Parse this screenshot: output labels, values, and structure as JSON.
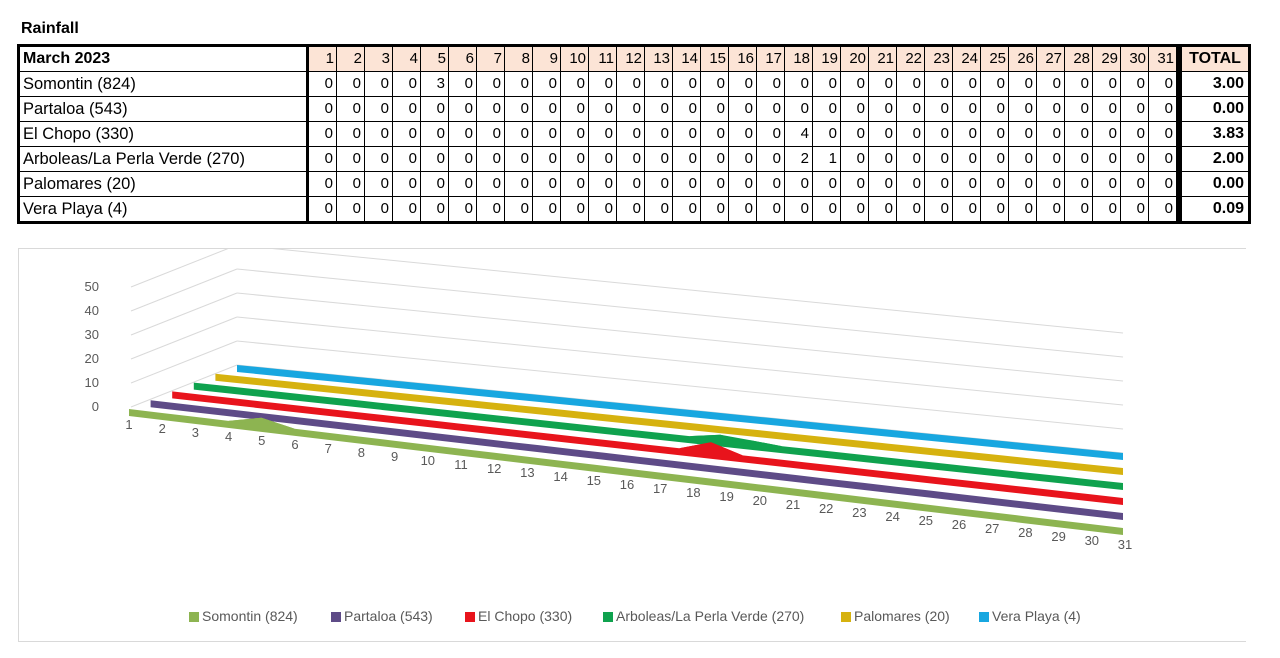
{
  "page_title": "Rainfall",
  "table": {
    "month_label": "March 2023",
    "days": [
      "1",
      "2",
      "3",
      "4",
      "5",
      "6",
      "7",
      "8",
      "9",
      "10",
      "11",
      "12",
      "13",
      "14",
      "15",
      "16",
      "17",
      "18",
      "19",
      "20",
      "21",
      "22",
      "23",
      "24",
      "25",
      "26",
      "27",
      "28",
      "29",
      "30",
      "31"
    ],
    "total_label": "TOTAL",
    "rows": [
      {
        "name": "Somontin (824)",
        "values": [
          "0",
          "0",
          "0",
          "0",
          "3",
          "0",
          "0",
          "0",
          "0",
          "0",
          "0",
          "0",
          "0",
          "0",
          "0",
          "0",
          "0",
          "0",
          "0",
          "0",
          "0",
          "0",
          "0",
          "0",
          "0",
          "0",
          "0",
          "0",
          "0",
          "0",
          "0"
        ],
        "total": "3.00"
      },
      {
        "name": "Partaloa (543)",
        "values": [
          "0",
          "0",
          "0",
          "0",
          "0",
          "0",
          "0",
          "0",
          "0",
          "0",
          "0",
          "0",
          "0",
          "0",
          "0",
          "0",
          "0",
          "0",
          "0",
          "0",
          "0",
          "0",
          "0",
          "0",
          "0",
          "0",
          "0",
          "0",
          "0",
          "0",
          "0"
        ],
        "total": "0.00"
      },
      {
        "name": "El Chopo (330)",
        "values": [
          "0",
          "0",
          "0",
          "0",
          "0",
          "0",
          "0",
          "0",
          "0",
          "0",
          "0",
          "0",
          "0",
          "0",
          "0",
          "0",
          "0",
          "4",
          "0",
          "0",
          "0",
          "0",
          "0",
          "0",
          "0",
          "0",
          "0",
          "0",
          "0",
          "0",
          "0"
        ],
        "total": "3.83"
      },
      {
        "name": "Arboleas/La Perla Verde (270)",
        "values": [
          "0",
          "0",
          "0",
          "0",
          "0",
          "0",
          "0",
          "0",
          "0",
          "0",
          "0",
          "0",
          "0",
          "0",
          "0",
          "0",
          "0",
          "2",
          "1",
          "0",
          "0",
          "0",
          "0",
          "0",
          "0",
          "0",
          "0",
          "0",
          "0",
          "0",
          "0"
        ],
        "total": "2.00"
      },
      {
        "name": "Palomares (20)",
        "values": [
          "0",
          "0",
          "0",
          "0",
          "0",
          "0",
          "0",
          "0",
          "0",
          "0",
          "0",
          "0",
          "0",
          "0",
          "0",
          "0",
          "0",
          "0",
          "0",
          "0",
          "0",
          "0",
          "0",
          "0",
          "0",
          "0",
          "0",
          "0",
          "0",
          "0",
          "0"
        ],
        "total": "0.00"
      },
      {
        "name": "Vera Playa (4)",
        "values": [
          "0",
          "0",
          "0",
          "0",
          "0",
          "0",
          "0",
          "0",
          "0",
          "0",
          "0",
          "0",
          "0",
          "0",
          "0",
          "0",
          "0",
          "0",
          "0",
          "0",
          "0",
          "0",
          "0",
          "0",
          "0",
          "0",
          "0",
          "0",
          "0",
          "0",
          "0"
        ],
        "total": "0.09"
      }
    ]
  },
  "chart_data": {
    "type": "area",
    "style": "3d",
    "x": [
      1,
      2,
      3,
      4,
      5,
      6,
      7,
      8,
      9,
      10,
      11,
      12,
      13,
      14,
      15,
      16,
      17,
      18,
      19,
      20,
      21,
      22,
      23,
      24,
      25,
      26,
      27,
      28,
      29,
      30,
      31
    ],
    "y_ticks": [
      "0",
      "10",
      "20",
      "30",
      "40",
      "50"
    ],
    "ylim": [
      0,
      50
    ],
    "grid": true,
    "legend_position": "bottom",
    "series": [
      {
        "name": "Somontin (824)",
        "color": "#8db451",
        "values": [
          0,
          0,
          0,
          0,
          3,
          0,
          0,
          0,
          0,
          0,
          0,
          0,
          0,
          0,
          0,
          0,
          0,
          0,
          0,
          0,
          0,
          0,
          0,
          0,
          0,
          0,
          0,
          0,
          0,
          0,
          0
        ]
      },
      {
        "name": "Partaloa (543)",
        "color": "#5e4b87",
        "values": [
          0,
          0,
          0,
          0,
          0,
          0,
          0,
          0,
          0,
          0,
          0,
          0,
          0,
          0,
          0,
          0,
          0,
          0,
          0,
          0,
          0,
          0,
          0,
          0,
          0,
          0,
          0,
          0,
          0,
          0,
          0
        ]
      },
      {
        "name": "El Chopo (330)",
        "color": "#e8141c",
        "values": [
          0,
          0,
          0,
          0,
          0,
          0,
          0,
          0,
          0,
          0,
          0,
          0,
          0,
          0,
          0,
          0,
          0,
          4,
          0,
          0,
          0,
          0,
          0,
          0,
          0,
          0,
          0,
          0,
          0,
          0,
          0
        ]
      },
      {
        "name": "Arboleas/La Perla Verde (270)",
        "color": "#0fa24e",
        "values": [
          0,
          0,
          0,
          0,
          0,
          0,
          0,
          0,
          0,
          0,
          0,
          0,
          0,
          0,
          0,
          0,
          0,
          2,
          1,
          0,
          0,
          0,
          0,
          0,
          0,
          0,
          0,
          0,
          0,
          0,
          0
        ]
      },
      {
        "name": "Palomares (20)",
        "color": "#d6b20f",
        "values": [
          0,
          0,
          0,
          0,
          0,
          0,
          0,
          0,
          0,
          0,
          0,
          0,
          0,
          0,
          0,
          0,
          0,
          0,
          0,
          0,
          0,
          0,
          0,
          0,
          0,
          0,
          0,
          0,
          0,
          0,
          0
        ]
      },
      {
        "name": "Vera Playa (4)",
        "color": "#18a7e0",
        "values": [
          0,
          0,
          0,
          0,
          0,
          0,
          0,
          0,
          0,
          0,
          0,
          0,
          0,
          0,
          0,
          0,
          0,
          0,
          0,
          0,
          0,
          0,
          0,
          0,
          0,
          0,
          0,
          0,
          0,
          0,
          0
        ]
      }
    ]
  }
}
